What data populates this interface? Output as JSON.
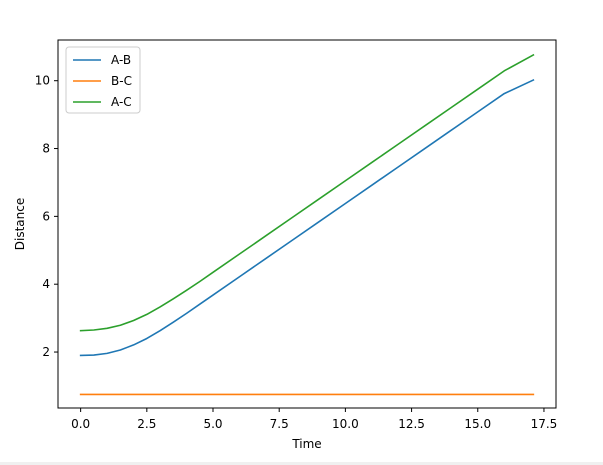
{
  "chart_data": {
    "type": "line",
    "title": "",
    "xlabel": "Time",
    "ylabel": "Distance",
    "xlim": [
      -0.855,
      17.955
    ],
    "ylim": [
      0.35,
      11.2
    ],
    "xticks": [
      0.0,
      2.5,
      5.0,
      7.5,
      10.0,
      12.5,
      15.0,
      17.5
    ],
    "xtick_labels": [
      "0.0",
      "2.5",
      "5.0",
      "7.5",
      "10.0",
      "12.5",
      "15.0",
      "17.5"
    ],
    "yticks": [
      2,
      4,
      6,
      8,
      10
    ],
    "ytick_labels": [
      "2",
      "4",
      "6",
      "8",
      "10"
    ],
    "grid": false,
    "legend_position": "top-left",
    "x": [
      0.0,
      0.5,
      1.0,
      1.5,
      2.0,
      2.5,
      3.0,
      3.5,
      4.0,
      4.5,
      5.0,
      6.0,
      7.0,
      8.0,
      9.0,
      10.0,
      11.0,
      12.0,
      13.0,
      14.0,
      15.0,
      16.0,
      17.1
    ],
    "series": [
      {
        "name": "A-B",
        "color": "#1f77b4",
        "values": [
          1.9,
          1.91,
          1.96,
          2.06,
          2.21,
          2.4,
          2.63,
          2.88,
          3.14,
          3.41,
          3.68,
          4.22,
          4.76,
          5.3,
          5.84,
          6.38,
          6.92,
          7.46,
          8.0,
          8.54,
          9.08,
          9.62,
          10.02
        ]
      },
      {
        "name": "B-C",
        "color": "#ff7f0e",
        "values": [
          0.75,
          0.75,
          0.75,
          0.75,
          0.75,
          0.75,
          0.75,
          0.75,
          0.75,
          0.75,
          0.75,
          0.75,
          0.75,
          0.75,
          0.75,
          0.75,
          0.75,
          0.75,
          0.75,
          0.75,
          0.75,
          0.75,
          0.75
        ]
      },
      {
        "name": "A-C",
        "color": "#2ca02c",
        "values": [
          2.63,
          2.65,
          2.7,
          2.79,
          2.93,
          3.11,
          3.33,
          3.57,
          3.82,
          4.08,
          4.35,
          4.89,
          5.43,
          5.97,
          6.51,
          7.05,
          7.59,
          8.13,
          8.67,
          9.21,
          9.75,
          10.29,
          10.76
        ]
      }
    ]
  }
}
